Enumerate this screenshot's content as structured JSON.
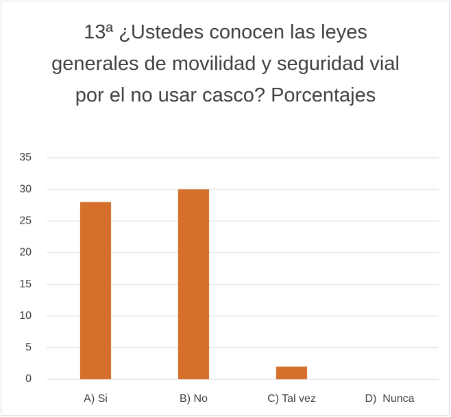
{
  "chart_data": {
    "type": "bar",
    "title": "13ª ¿Ustedes conocen las leyes generales de movilidad y seguridad vial por el no usar casco? Porcentajes",
    "categories": [
      "A) Si",
      "B) No",
      "C) Tal vez",
      "D)  Nunca"
    ],
    "values": [
      28,
      30,
      2,
      0
    ],
    "color": "#d4702b",
    "ylim": [
      0,
      35
    ],
    "yticks": [
      0,
      5,
      10,
      15,
      20,
      25,
      30,
      35
    ],
    "grid": true
  }
}
